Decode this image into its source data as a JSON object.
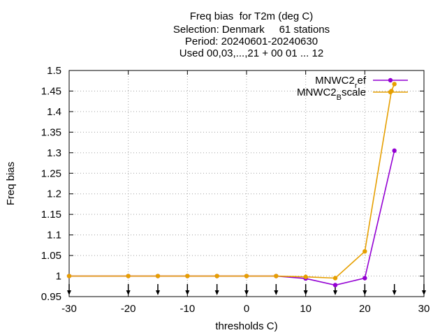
{
  "title_lines": [
    "Freq bias  for T2m (deg C)",
    "Selection: Denmark     61 stations",
    "Period: 20240601-20240630",
    "Used 00,03,...,21 + 00 01 ... 12"
  ],
  "chart_data": {
    "type": "line",
    "xlabel": "thresholds C)",
    "ylabel": "Freq bias",
    "xlim": [
      -30,
      30
    ],
    "ylim": [
      0.95,
      1.5
    ],
    "xticks": [
      -30,
      -20,
      -10,
      0,
      10,
      20,
      30
    ],
    "yticks": [
      0.95,
      1,
      1.05,
      1.1,
      1.15,
      1.2,
      1.25,
      1.3,
      1.35,
      1.4,
      1.45,
      1.5
    ],
    "ytick_labels": [
      "0.95",
      "1",
      "1.05",
      "1.1",
      "1.15",
      "1.2",
      "1.25",
      "1.3",
      "1.35",
      "1.4",
      "1.45",
      "1.5"
    ],
    "threshold_markers": [
      -30,
      -20,
      -15,
      -10,
      -5,
      0,
      5,
      10,
      15,
      20,
      25,
      30
    ],
    "legend_position": "top-right",
    "grid": true,
    "series": [
      {
        "name": "MNWC2",
        "name_sub": "r",
        "name_rest": "ef",
        "color": "#9400d3",
        "x": [
          -30,
          -20,
          -15,
          -10,
          -5,
          0,
          5,
          10,
          15,
          20,
          25
        ],
        "y": [
          1.0,
          1.0,
          1.0,
          1.0,
          1.0,
          1.0,
          1.0,
          0.994,
          0.978,
          0.995,
          1.305
        ]
      },
      {
        "name": "MNWC2",
        "name_sub": "B",
        "name_rest": "scale",
        "color": "#e69f00",
        "x": [
          -30,
          -20,
          -15,
          -10,
          -5,
          0,
          5,
          10,
          15,
          20,
          24.5,
          25
        ],
        "y": [
          1.0,
          1.0,
          1.0,
          1.0,
          1.0,
          1.0,
          1.0,
          0.998,
          0.995,
          1.06,
          1.45,
          1.467
        ]
      }
    ]
  }
}
